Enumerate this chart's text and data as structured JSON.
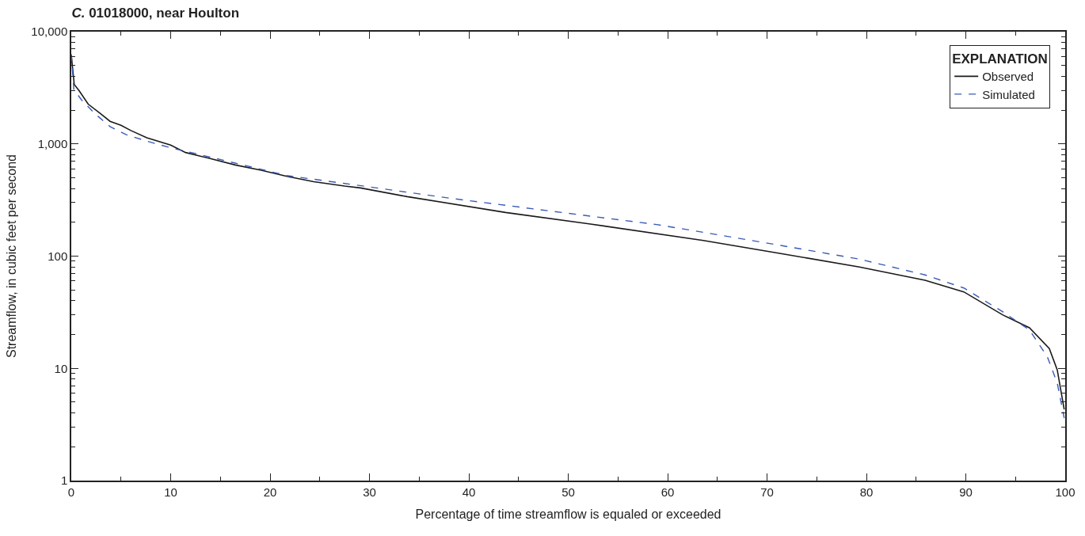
{
  "chart_data": {
    "type": "line",
    "title": "C. 01018000, near Houlton",
    "xlabel": "Percentage of time streamflow is equaled or exceeded",
    "ylabel": "Streamflow, in cubic feet per second",
    "legend_title": "EXPLANATION",
    "legend": "top right",
    "log": "y",
    "marker": "none",
    "xlim": [
      0,
      100
    ],
    "xticks": [
      0,
      10,
      20,
      30,
      40,
      50,
      60,
      70,
      80,
      90,
      100
    ],
    "ylim": [
      1,
      10000
    ],
    "yticks": [
      1,
      10,
      100,
      {
        "value": 1000,
        "label": "1,000"
      },
      {
        "value": 10000,
        "label": "10,000"
      }
    ],
    "series": [
      {
        "name": "Observed",
        "color": "#1a1a1a",
        "line_style": "solid",
        "x": [
          0,
          0.3,
          0.8,
          1.7,
          2.9,
          3.9,
          5.0,
          6.0,
          7.6,
          10.0,
          11.5,
          13.9,
          16.5,
          19.1,
          21.7,
          24.4,
          27.5,
          29.1,
          33.8,
          43.7,
          52.1,
          63.6,
          71.5,
          79.3,
          85.9,
          89.8,
          93.7,
          96.4,
          98.4,
          99.2,
          99.9
        ],
        "values": [
          6200,
          3380,
          2970,
          2260,
          1870,
          1590,
          1465,
          1315,
          1136,
          975,
          838,
          743,
          649,
          582,
          514,
          461,
          421,
          405,
          339,
          245,
          194,
          138,
          105,
          80,
          61,
          48,
          30,
          23,
          15,
          9.7,
          4.3
        ]
      },
      {
        "name": "Simulated",
        "color": "#3a5bb5",
        "line_style": "dashed",
        "x": [
          0,
          0.26,
          1.05,
          2.35,
          3.9,
          5.5,
          7.6,
          10.0,
          12.8,
          16.5,
          21.7,
          27.5,
          38.0,
          48.4,
          58.9,
          63.6,
          71.5,
          79.3,
          85.9,
          89.8,
          93.7,
          96.4,
          98.2,
          99.2,
          99.9
        ],
        "values": [
          6300,
          3050,
          2455,
          1870,
          1426,
          1211,
          1058,
          923,
          807,
          674,
          522,
          444,
          329,
          251,
          191,
          163,
          124,
          94,
          68,
          52,
          32,
          22,
          12.7,
          7.4,
          3.6
        ]
      }
    ]
  }
}
